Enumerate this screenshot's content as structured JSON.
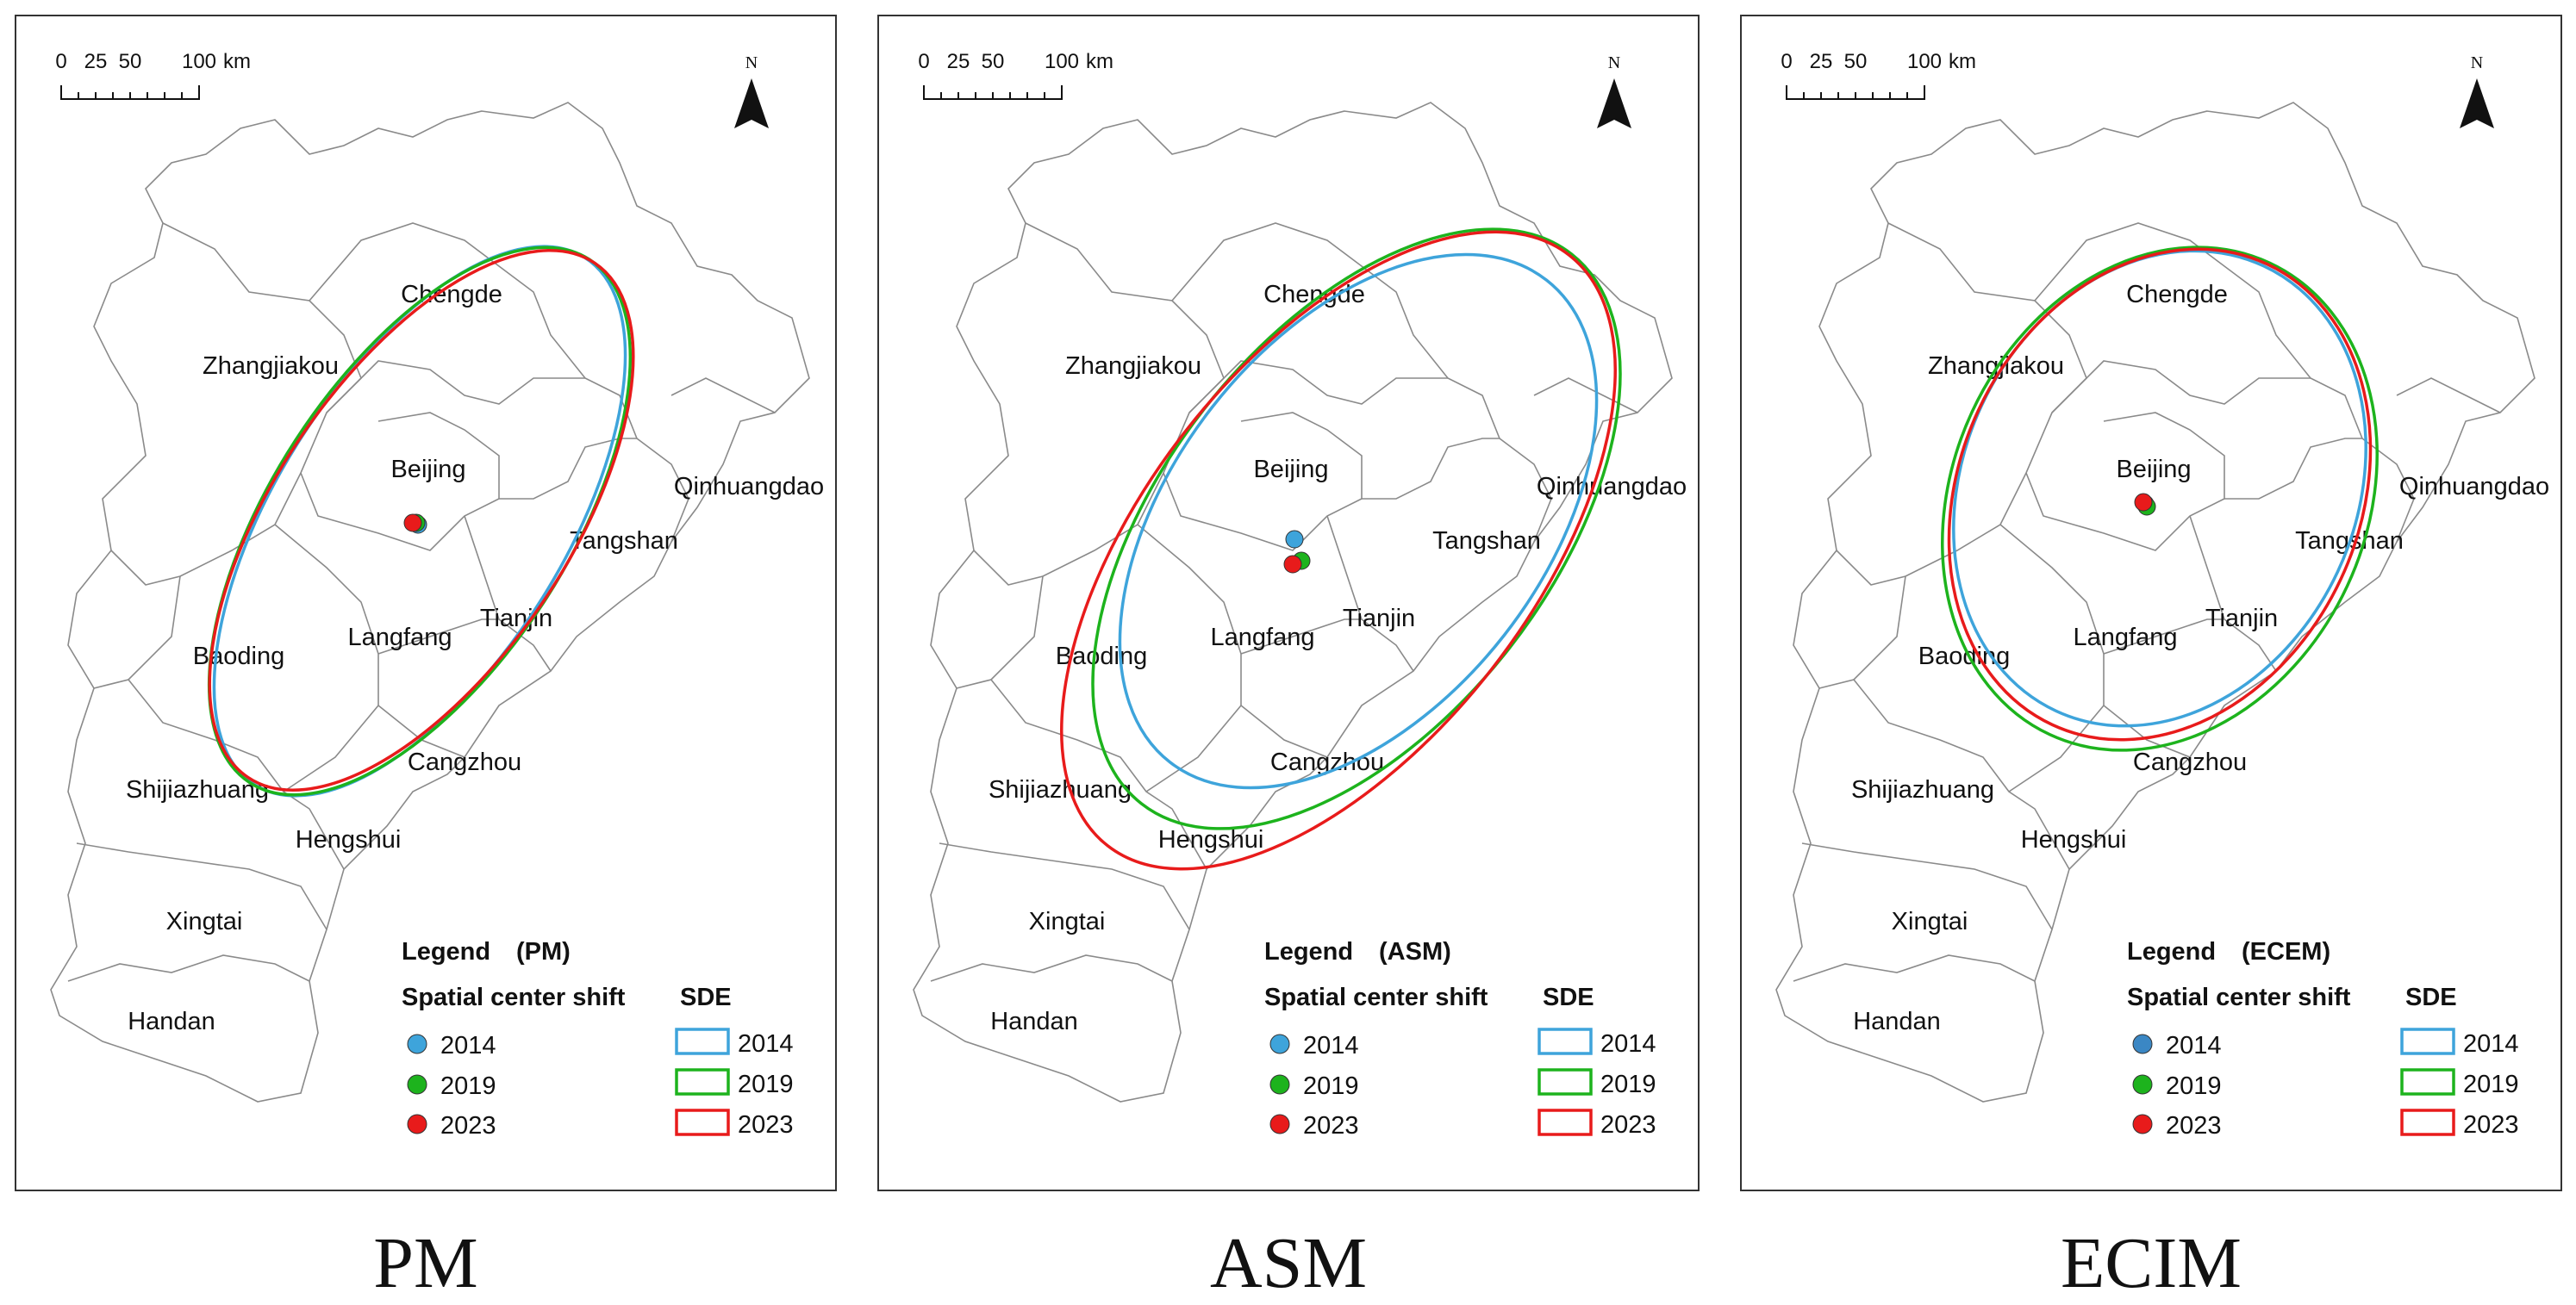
{
  "scale_bar": {
    "labels": [
      "0",
      "25",
      "50",
      "100"
    ],
    "unit": "km"
  },
  "north_label": "N",
  "cities": [
    "Chengde",
    "Zhangjiakou",
    "Beijing",
    "Qinhuangdao",
    "Tangshan",
    "Tianjin",
    "Langfang",
    "Baoding",
    "Cangzhou",
    "Shijiazhuang",
    "Hengshui",
    "Xingtai",
    "Handan"
  ],
  "legend": {
    "title": "Legend",
    "center_heading": "Spatial center shift",
    "sde_heading": "SDE",
    "years": [
      "2014",
      "2019",
      "2023"
    ]
  },
  "colors": {
    "y2014": "#3ea4db",
    "y2019": "#1db31d",
    "y2023": "#e81b1b",
    "y2014_ecim_point": "#3b87c4",
    "boundary": "#8a8a8a"
  },
  "panels": [
    {
      "caption": "PM",
      "legend_suffix": "(PM)"
    },
    {
      "caption": "ASM",
      "legend_suffix": "(ASM)"
    },
    {
      "caption": "ECIM",
      "legend_suffix": "(ECEM)"
    }
  ]
}
